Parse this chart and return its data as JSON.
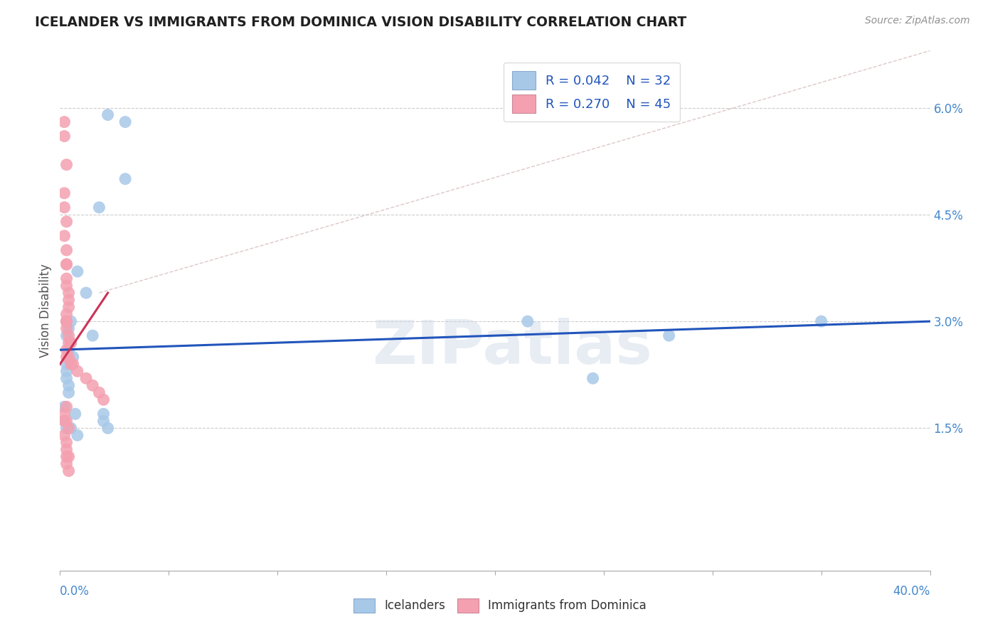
{
  "title": "ICELANDER VS IMMIGRANTS FROM DOMINICA VISION DISABILITY CORRELATION CHART",
  "source": "Source: ZipAtlas.com",
  "ylabel": "Vision Disability",
  "yticks": [
    "6.0%",
    "4.5%",
    "3.0%",
    "1.5%"
  ],
  "ytick_vals": [
    0.06,
    0.045,
    0.03,
    0.015
  ],
  "xmin": 0.0,
  "xmax": 0.4,
  "ymin": -0.005,
  "ymax": 0.068,
  "legend_r1": "R = 0.042",
  "legend_n1": "N = 32",
  "legend_r2": "R = 0.270",
  "legend_n2": "N = 45",
  "blue_color": "#a8c8e8",
  "pink_color": "#f4a0b0",
  "blue_line_color": "#2255bb",
  "pink_line_color": "#cc3355",
  "dashed_color": "#d0b0b0",
  "title_color": "#202020",
  "source_color": "#909090",
  "axis_color": "#4488cc",
  "watermark": "ZIPatlas",
  "blue_x": [
    0.022,
    0.03,
    0.03,
    0.018,
    0.008,
    0.012,
    0.005,
    0.003,
    0.004,
    0.003,
    0.005,
    0.004,
    0.006,
    0.003,
    0.003,
    0.003,
    0.004,
    0.004,
    0.002,
    0.007,
    0.02,
    0.02,
    0.002,
    0.003,
    0.005,
    0.35,
    0.28,
    0.245,
    0.215,
    0.015,
    0.022,
    0.008
  ],
  "blue_y": [
    0.059,
    0.058,
    0.05,
    0.046,
    0.037,
    0.034,
    0.03,
    0.03,
    0.029,
    0.028,
    0.027,
    0.026,
    0.025,
    0.024,
    0.023,
    0.022,
    0.021,
    0.02,
    0.018,
    0.017,
    0.016,
    0.017,
    0.016,
    0.015,
    0.015,
    0.03,
    0.028,
    0.022,
    0.03,
    0.028,
    0.015,
    0.014
  ],
  "pink_x": [
    0.002,
    0.002,
    0.002,
    0.003,
    0.003,
    0.003,
    0.003,
    0.004,
    0.004,
    0.004,
    0.003,
    0.003,
    0.003,
    0.003,
    0.004,
    0.004,
    0.005,
    0.003,
    0.003,
    0.004,
    0.005,
    0.006,
    0.008,
    0.012,
    0.015,
    0.018,
    0.02,
    0.003,
    0.002,
    0.003,
    0.004,
    0.002,
    0.003,
    0.003,
    0.004,
    0.003,
    0.004,
    0.002,
    0.003,
    0.002,
    0.003,
    0.003,
    0.003,
    0.002,
    0.003
  ],
  "pink_y": [
    0.058,
    0.046,
    0.042,
    0.04,
    0.038,
    0.036,
    0.035,
    0.034,
    0.033,
    0.032,
    0.031,
    0.03,
    0.03,
    0.029,
    0.028,
    0.027,
    0.027,
    0.026,
    0.025,
    0.025,
    0.024,
    0.024,
    0.023,
    0.022,
    0.021,
    0.02,
    0.019,
    0.018,
    0.017,
    0.016,
    0.015,
    0.014,
    0.013,
    0.012,
    0.011,
    0.01,
    0.009,
    0.056,
    0.052,
    0.048,
    0.044,
    0.038,
    0.03,
    0.016,
    0.011
  ],
  "blue_line_x": [
    0.0,
    0.4
  ],
  "blue_line_y": [
    0.026,
    0.03
  ],
  "pink_line_x": [
    0.0,
    0.022
  ],
  "pink_line_y": [
    0.024,
    0.034
  ],
  "dash_line_x": [
    0.018,
    0.4
  ],
  "dash_line_y": [
    0.034,
    0.068
  ]
}
